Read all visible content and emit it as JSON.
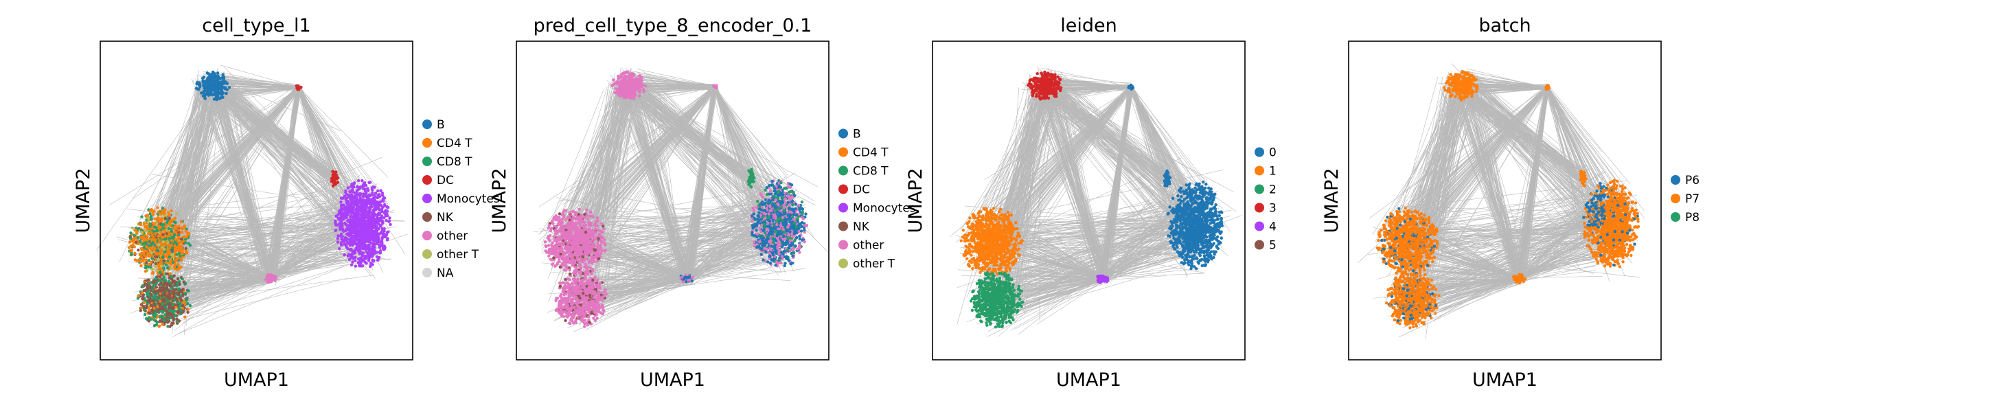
{
  "palette": {
    "tab10": [
      "#1f77b4",
      "#ff7f0e",
      "#279e68",
      "#d62728",
      "#aa40fc",
      "#8c564b",
      "#e377c2",
      "#b5bd61",
      "#17becf",
      "#aec7e8"
    ],
    "na_color": "#d3d3d3",
    "edge_color": "#808080",
    "axes_color": "#000000"
  },
  "chart_data": [
    {
      "type": "scatter",
      "title": "cell_type_l1",
      "xlabel": "UMAP1",
      "ylabel": "UMAP2",
      "legend_position": "right",
      "show_ticks": false,
      "legend": [
        {
          "label": "B",
          "color": "#1f77b4"
        },
        {
          "label": "CD4 T",
          "color": "#ff7f0e"
        },
        {
          "label": "CD8 T",
          "color": "#279e68"
        },
        {
          "label": "DC",
          "color": "#d62728"
        },
        {
          "label": "Monocytes",
          "color": "#aa40fc"
        },
        {
          "label": "NK",
          "color": "#8c564b"
        },
        {
          "label": "other",
          "color": "#e377c2"
        },
        {
          "label": "other T",
          "color": "#b5bd61"
        },
        {
          "label": "NA",
          "color": "#d3d3d3"
        }
      ]
    },
    {
      "type": "scatter",
      "title": "pred_cell_type_8_encoder_0.1",
      "xlabel": "UMAP1",
      "ylabel": "UMAP2",
      "legend_position": "right",
      "show_ticks": false,
      "legend": [
        {
          "label": "B",
          "color": "#1f77b4"
        },
        {
          "label": "CD4 T",
          "color": "#ff7f0e"
        },
        {
          "label": "CD8 T",
          "color": "#279e68"
        },
        {
          "label": "DC",
          "color": "#d62728"
        },
        {
          "label": "Monocytes",
          "color": "#aa40fc"
        },
        {
          "label": "NK",
          "color": "#8c564b"
        },
        {
          "label": "other",
          "color": "#e377c2"
        },
        {
          "label": "other T",
          "color": "#b5bd61"
        }
      ]
    },
    {
      "type": "scatter",
      "title": "leiden",
      "xlabel": "UMAP1",
      "ylabel": "UMAP2",
      "legend_position": "right",
      "show_ticks": false,
      "legend": [
        {
          "label": "0",
          "color": "#1f77b4"
        },
        {
          "label": "1",
          "color": "#ff7f0e"
        },
        {
          "label": "2",
          "color": "#279e68"
        },
        {
          "label": "3",
          "color": "#d62728"
        },
        {
          "label": "4",
          "color": "#aa40fc"
        },
        {
          "label": "5",
          "color": "#8c564b"
        }
      ]
    },
    {
      "type": "scatter",
      "title": "batch",
      "xlabel": "UMAP1",
      "ylabel": "UMAP2",
      "legend_position": "right",
      "show_ticks": false,
      "legend": [
        {
          "label": "P6",
          "color": "#1f77b4"
        },
        {
          "label": "P7",
          "color": "#ff7f0e"
        },
        {
          "label": "P8",
          "color": "#279e68"
        }
      ]
    }
  ]
}
